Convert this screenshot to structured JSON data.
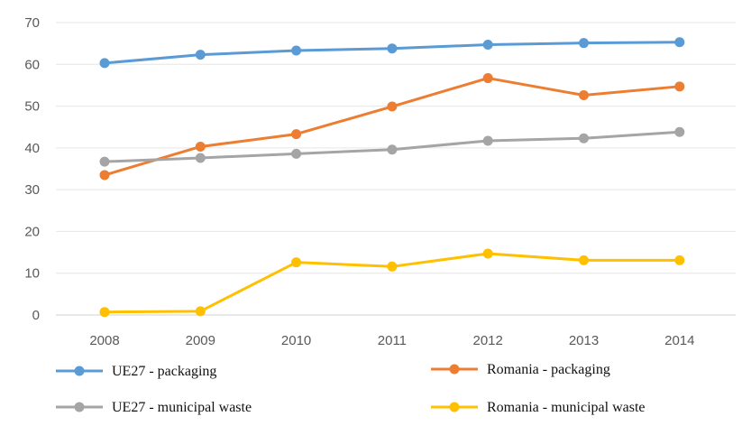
{
  "chart_data": {
    "type": "line",
    "title": "",
    "xlabel": "",
    "ylabel": "",
    "x": [
      "2008",
      "2009",
      "2010",
      "2011",
      "2012",
      "2013",
      "2014"
    ],
    "ylim": [
      0,
      70
    ],
    "yticks": [
      0,
      10,
      20,
      30,
      40,
      50,
      60,
      70
    ],
    "grid": true,
    "legend_position": "bottom",
    "series": [
      {
        "name": "UE27 - packaging",
        "color": "#5B9BD5",
        "values": [
          60.3,
          62.3,
          63.3,
          63.8,
          64.7,
          65.1,
          65.3
        ]
      },
      {
        "name": "Romania - packaging",
        "color": "#ED7D31",
        "values": [
          33.5,
          40.3,
          43.3,
          49.9,
          56.7,
          52.6,
          54.7
        ]
      },
      {
        "name": "UE27 -  municipal waste",
        "color": "#A5A5A5",
        "values": [
          36.7,
          37.6,
          38.6,
          39.6,
          41.7,
          42.3,
          43.8
        ]
      },
      {
        "name": "Romania -  municipal waste",
        "color": "#FFC000",
        "values": [
          0.7,
          0.9,
          12.6,
          11.6,
          14.7,
          13.1,
          13.1
        ]
      }
    ]
  }
}
